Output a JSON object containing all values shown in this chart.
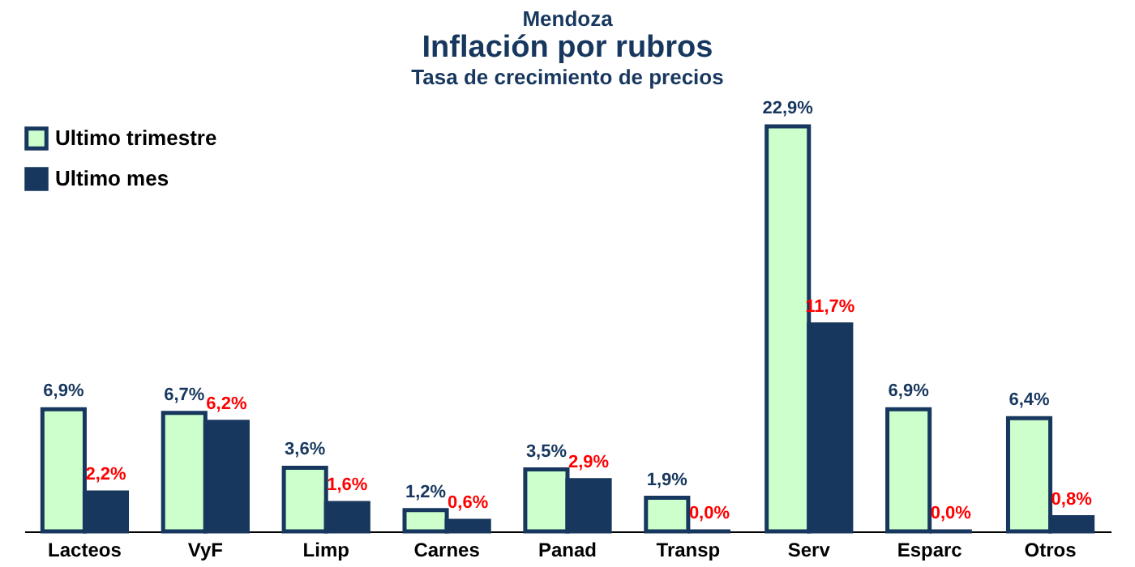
{
  "chart_data": {
    "type": "bar",
    "title": "Inflación por rubros",
    "subtitle": "Tasa de crecimiento de precios",
    "annotations": [
      "Mendoza"
    ],
    "categories": [
      "Lacteos",
      "VyF",
      "Limp",
      "Carnes",
      "Panad",
      "Transp",
      "Serv",
      "Esparc",
      "Otros"
    ],
    "series": [
      {
        "name": "Ultimo trimestre",
        "color": "#ccffcc",
        "values": [
          6.9,
          6.7,
          3.6,
          1.2,
          3.5,
          1.9,
          22.9,
          6.9,
          6.4
        ],
        "value_labels": [
          "6,9%",
          "6,7%",
          "3,6%",
          "1,2%",
          "3,5%",
          "1,9%",
          "22,9%",
          "6,9%",
          "6,4%"
        ]
      },
      {
        "name": "Ultimo mes",
        "color": "#17375e",
        "values": [
          2.2,
          6.2,
          1.6,
          0.6,
          2.9,
          0.0,
          11.7,
          0.0,
          0.8
        ],
        "value_labels": [
          "2,2%",
          "6,2%",
          "1,6%",
          "0,6%",
          "2,9%",
          "0,0%",
          "11,7%",
          "0,0%",
          "0,8%"
        ]
      }
    ],
    "legend": "top left",
    "grid": false
  }
}
